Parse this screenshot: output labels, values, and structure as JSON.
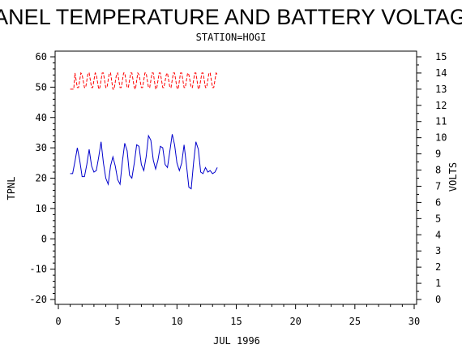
{
  "chart_data": {
    "type": "line",
    "title": "PANEL TEMPERATURE AND BATTERY VOLTAGE",
    "subtitle": "STATION=HOGI",
    "xlabel": "JUL  1996",
    "ylabel_left": "TPNL",
    "ylabel_right": "VOLTS",
    "xlim": [
      0,
      30
    ],
    "ylim_left": [
      -20,
      60
    ],
    "ylim_right": [
      0,
      15
    ],
    "x_ticks": [
      "0",
      "5",
      "10",
      "15",
      "20",
      "25",
      "30"
    ],
    "y_left_ticks": [
      "-20",
      "-10",
      "0",
      "10",
      "20",
      "30",
      "40",
      "50",
      "60"
    ],
    "y_right_ticks": [
      "0",
      "1",
      "2",
      "3",
      "4",
      "5",
      "6",
      "7",
      "8",
      "9",
      "10",
      "11",
      "12",
      "13",
      "14",
      "15"
    ],
    "grid": false,
    "series": [
      {
        "axis": "left",
        "color": "#0000cc",
        "style": "solid",
        "x": [
          1.0,
          1.2,
          1.4,
          1.6,
          1.8,
          2.0,
          2.2,
          2.4,
          2.6,
          2.8,
          3.0,
          3.2,
          3.4,
          3.6,
          3.8,
          4.0,
          4.2,
          4.4,
          4.6,
          4.8,
          5.0,
          5.2,
          5.4,
          5.6,
          5.8,
          6.0,
          6.2,
          6.4,
          6.6,
          6.8,
          7.0,
          7.2,
          7.4,
          7.6,
          7.8,
          8.0,
          8.2,
          8.4,
          8.6,
          8.8,
          9.0,
          9.2,
          9.4,
          9.6,
          9.8,
          10.0,
          10.2,
          10.4,
          10.6,
          10.8,
          11.0,
          11.2,
          11.4,
          11.6,
          11.8,
          12.0,
          12.2,
          12.4,
          12.6,
          12.8,
          13.0,
          13.2,
          13.4
        ],
        "values": [
          21.5,
          21.5,
          25.5,
          30.0,
          26.0,
          20.5,
          20.5,
          24.5,
          29.5,
          24.0,
          22.0,
          22.5,
          27.0,
          32.0,
          25.0,
          20.0,
          18.0,
          24.0,
          27.0,
          24.0,
          19.5,
          18.0,
          25.5,
          31.5,
          29.0,
          21.0,
          20.0,
          25.0,
          31.0,
          30.5,
          24.5,
          22.5,
          27.0,
          34.0,
          32.5,
          26.0,
          23.0,
          26.0,
          30.5,
          30.0,
          24.5,
          23.5,
          29.0,
          34.5,
          31.0,
          25.0,
          22.5,
          25.0,
          31.0,
          24.5,
          17.0,
          16.5,
          25.0,
          32.0,
          29.5,
          22.0,
          21.5,
          23.5,
          22.0,
          22.5,
          21.5,
          22.0,
          23.5
        ]
      },
      {
        "axis": "right",
        "color": "#ff0000",
        "style": "dashed",
        "x": [
          1.0,
          1.1,
          1.3,
          1.4,
          1.6,
          1.7,
          1.9,
          2.0,
          2.2,
          2.3,
          2.5,
          2.6,
          2.8,
          2.9,
          3.1,
          3.2,
          3.4,
          3.5,
          3.7,
          3.8,
          4.0,
          4.1,
          4.3,
          4.4,
          4.6,
          4.7,
          4.9,
          5.0,
          5.2,
          5.3,
          5.5,
          5.6,
          5.8,
          5.9,
          6.1,
          6.2,
          6.4,
          6.5,
          6.7,
          6.8,
          7.0,
          7.1,
          7.3,
          7.4,
          7.6,
          7.7,
          7.9,
          8.0,
          8.2,
          8.3,
          8.5,
          8.6,
          8.8,
          8.9,
          9.1,
          9.2,
          9.4,
          9.5,
          9.7,
          9.8,
          10.0,
          10.1,
          10.3,
          10.4,
          10.6,
          10.7,
          10.9,
          11.0,
          11.2,
          11.3,
          11.5,
          11.6,
          11.8,
          11.9,
          12.1,
          12.2,
          12.4,
          12.5,
          12.7,
          12.8,
          13.0,
          13.1,
          13.3,
          13.4
        ],
        "values": [
          13.0,
          13.0,
          13.0,
          14.0,
          13.1,
          13.1,
          14.0,
          13.9,
          13.1,
          13.1,
          14.0,
          14.0,
          13.1,
          13.1,
          14.0,
          13.9,
          13.0,
          13.1,
          14.0,
          14.0,
          13.1,
          13.1,
          14.0,
          14.0,
          13.0,
          13.0,
          13.9,
          14.0,
          13.1,
          13.1,
          14.0,
          14.0,
          13.1,
          13.1,
          14.0,
          14.0,
          13.1,
          13.0,
          14.0,
          13.9,
          13.1,
          13.1,
          14.0,
          14.0,
          13.1,
          13.1,
          14.0,
          14.0,
          13.0,
          13.1,
          14.0,
          14.0,
          13.1,
          13.1,
          13.9,
          14.0,
          13.1,
          13.1,
          14.0,
          14.0,
          13.1,
          13.0,
          14.0,
          14.0,
          13.1,
          13.1,
          14.0,
          13.9,
          13.1,
          13.1,
          14.0,
          14.0,
          13.0,
          13.1,
          14.0,
          14.0,
          13.1,
          13.1,
          14.0,
          14.0,
          13.1,
          13.1,
          14.0,
          13.9
        ]
      }
    ]
  }
}
